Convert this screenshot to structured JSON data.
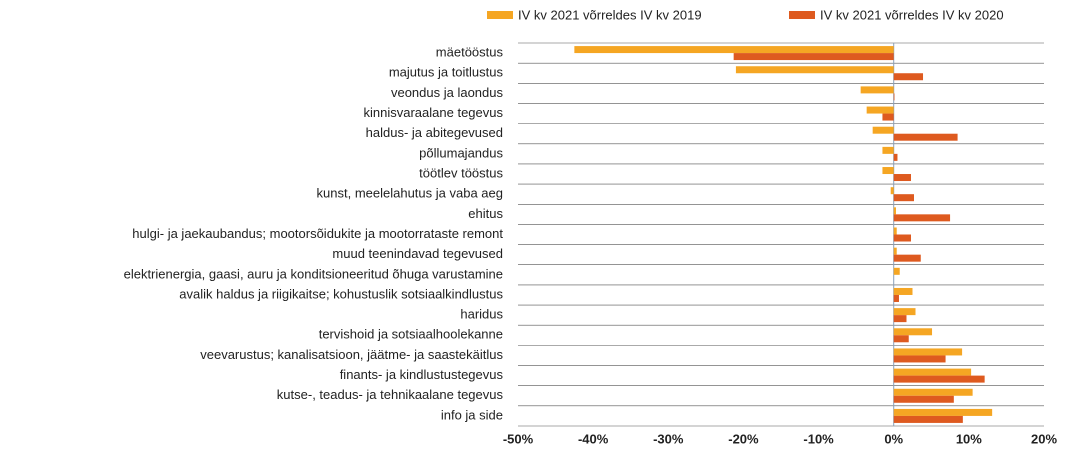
{
  "chart_data": {
    "type": "hbar",
    "categories": [
      "mäetööstus",
      "majutus ja toitlustus",
      "veondus ja laondus",
      "kinnisvaraalane tegevus",
      "haldus- ja abitegevused",
      "põllumajandus",
      "töötlev tööstus",
      "kunst, meelelahutus ja vaba aeg",
      "ehitus",
      "hulgi- ja jaekaubandus; mootorsõidukite ja mootorrataste remont",
      "muud teenindavad tegevused",
      "elektrienergia, gaasi, auru ja konditsioneeritud õhuga varustamine",
      "avalik haldus ja riigikaitse; kohustuslik sotsiaalkindlustus",
      "haridus",
      "tervishoid ja sotsiaalhoolekanne",
      "veevarustus; kanalisatsioon, jäätme- ja saastekäitlus",
      "finants- ja kindlustustegevus",
      "kutse-, teadus- ja tehnikaalane tegevus",
      "info ja side"
    ],
    "series": [
      {
        "name": "IV kv 2021 võrreldes IV kv 2019",
        "color": "#f5a623",
        "values": [
          -42.5,
          -21,
          -4.4,
          -3.6,
          -2.8,
          -1.5,
          -1.5,
          -0.4,
          0.3,
          0.4,
          0.4,
          0.8,
          2.5,
          2.9,
          5.1,
          9.1,
          10.3,
          10.5,
          13.1
        ]
      },
      {
        "name": "IV kv 2021 võrreldes IV kv 2020",
        "color": "#de5a1f",
        "values": [
          -21.3,
          3.9,
          0.1,
          -1.5,
          8.5,
          0.5,
          2.3,
          2.7,
          7.5,
          2.3,
          3.6,
          0,
          0.7,
          1.7,
          2.0,
          6.9,
          12.1,
          8.0,
          9.2
        ]
      }
    ],
    "xlim": [
      -50,
      20
    ],
    "xticks": [
      {
        "value": -50,
        "label": "-50%"
      },
      {
        "value": -40,
        "label": "-40%"
      },
      {
        "value": -30,
        "label": "-30%"
      },
      {
        "value": -20,
        "label": "-20%"
      },
      {
        "value": -10,
        "label": "-10%"
      },
      {
        "value": 0,
        "label": "0%"
      },
      {
        "value": 10,
        "label": "10%"
      },
      {
        "value": 20,
        "label": "20%"
      }
    ],
    "legend": "top"
  }
}
